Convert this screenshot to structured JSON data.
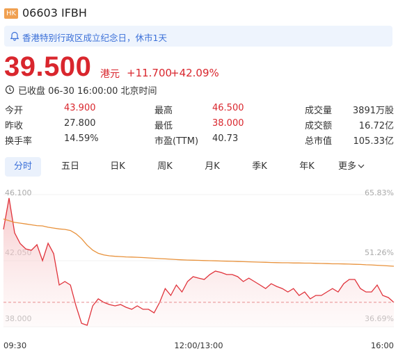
{
  "header": {
    "market": "HK",
    "code_name": "06603 IFBH"
  },
  "notice": "香港特别行政区成立纪念日，休市1天",
  "quote": {
    "price": "39.500",
    "currency": "港元",
    "change": "+11.700",
    "change_pct": "+42.09%",
    "status": "已收盘 06-30 16:00:00 北京时间"
  },
  "stats": [
    [
      {
        "label": "今开",
        "value": "43.900"
      },
      {
        "label": "最高",
        "value": "46.500"
      },
      {
        "label": "成交量",
        "value": "3891万股"
      }
    ],
    [
      {
        "label": "昨收",
        "value": "27.800"
      },
      {
        "label": "最低",
        "value": "38.000"
      },
      {
        "label": "成交额",
        "value": "16.72亿"
      }
    ],
    [
      {
        "label": "换手率",
        "value": "14.59%"
      },
      {
        "label": "市盈(TTM)",
        "value": "40.73"
      },
      {
        "label": "总市值",
        "value": "105.33亿"
      }
    ]
  ],
  "tabs": [
    "分时",
    "五日",
    "日K",
    "周K",
    "月K",
    "季K",
    "年K",
    "更多"
  ],
  "chart_data": {
    "type": "line",
    "x_labels": [
      "09:30",
      "12:00/13:00",
      "16:00"
    ],
    "ylim": [
      38,
      46.1
    ],
    "yticks": [
      {
        "value": 38,
        "label": "38.000"
      },
      {
        "value": 42.05,
        "label": "42.050"
      },
      {
        "value": 46.1,
        "label": "46.100"
      }
    ],
    "y2lim": [
      36.69,
      65.83
    ],
    "y2ticks": [
      {
        "value": 36.69,
        "label": "36.69%"
      },
      {
        "value": 51.26,
        "label": "51.26%"
      },
      {
        "value": 65.83,
        "label": "65.83%"
      }
    ],
    "series": [
      {
        "color": "#e0323a",
        "values": [
          43.97,
          45.89,
          43.76,
          43.1,
          42.77,
          42.69,
          43.03,
          42.05,
          43.12,
          42.48,
          40.56,
          40.77,
          40.56,
          39.28,
          38.21,
          38.09,
          39.28,
          39.71,
          39.49,
          39.36,
          39.28,
          39.36,
          39.19,
          39.07,
          39.28,
          39.07,
          39.07,
          38.85,
          39.49,
          40.34,
          39.92,
          40.56,
          40.13,
          40.77,
          41.07,
          40.98,
          40.9,
          41.2,
          41.41,
          41.33,
          41.2,
          41.2,
          41.07,
          40.77,
          40.98,
          40.77,
          40.56,
          40.34,
          40.64,
          40.47,
          40.34,
          40.13,
          40.34,
          39.92,
          40.13,
          39.71,
          39.92,
          39.92,
          40.13,
          40.34,
          40.13,
          40.64,
          40.9,
          40.9,
          40.34,
          40.13,
          40.13,
          40.56,
          39.92,
          39.79,
          39.49
        ]
      },
      {
        "color": "#e8913a",
        "values": [
          44.61,
          44.5,
          44.4,
          44.35,
          44.3,
          44.25,
          44.2,
          44.18,
          44.1,
          44.05,
          44.0,
          43.97,
          43.9,
          43.7,
          43.4,
          43.0,
          42.7,
          42.5,
          42.4,
          42.35,
          42.32,
          42.3,
          42.28,
          42.27,
          42.26,
          42.24,
          42.22,
          42.2,
          42.18,
          42.16,
          42.14,
          42.12,
          42.1,
          42.09,
          42.08,
          42.07,
          42.06,
          42.05,
          42.04,
          42.03,
          42.02,
          42.01,
          42.0,
          41.99,
          41.98,
          41.97,
          41.96,
          41.95,
          41.94,
          41.93,
          41.92,
          41.92,
          41.91,
          41.91,
          41.9,
          41.9,
          41.89,
          41.88,
          41.87,
          41.86,
          41.86,
          41.85,
          41.84,
          41.83,
          41.82,
          41.8,
          41.79,
          41.77,
          41.75,
          41.73,
          41.71
        ]
      }
    ]
  }
}
